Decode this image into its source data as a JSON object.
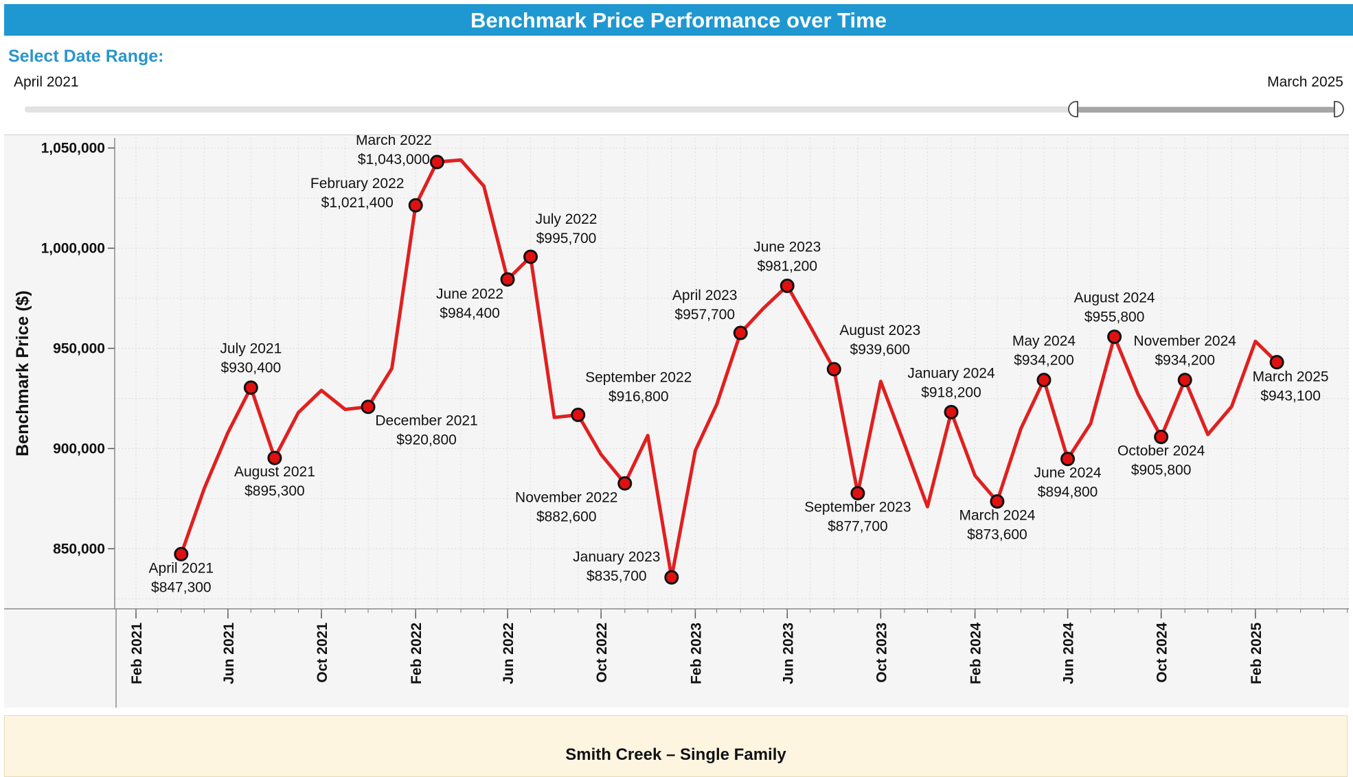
{
  "header": {
    "title": "Benchmark Price Performance over Time"
  },
  "range": {
    "label": "Select Date Range:",
    "start_label": "April 2021",
    "end_label": "March 2025"
  },
  "footer": {
    "title": "Smith Creek – Single Family"
  },
  "colors": {
    "title_bar": "#1f98d1",
    "label": "#2a95c9",
    "line": "#e02020",
    "marker": "#e01010"
  },
  "chart_data": {
    "type": "line",
    "ylabel": "Benchmark Price ($)",
    "xlabel": "",
    "ylim": [
      820000,
      1055000
    ],
    "xlim": [
      "2021-01-06",
      "2025-06-03"
    ],
    "yticks": [
      850000,
      900000,
      950000,
      1000000,
      1050000
    ],
    "ytick_labels": [
      "850,000",
      "900,000",
      "950,000",
      "1,000,000",
      "1,050,000"
    ],
    "xticks": [
      "2021-02-01",
      "2021-06-01",
      "2021-10-01",
      "2022-02-01",
      "2022-06-01",
      "2022-10-01",
      "2023-02-01",
      "2023-06-01",
      "2023-10-01",
      "2024-02-01",
      "2024-06-01",
      "2024-10-01",
      "2025-02-01"
    ],
    "xtick_labels": [
      "Feb 2021",
      "Jun 2021",
      "Oct 2021",
      "Feb 2022",
      "Jun 2022",
      "Oct 2022",
      "Feb 2023",
      "Jun 2023",
      "Oct 2023",
      "Feb 2024",
      "Jun 2024",
      "Oct 2024",
      "Feb 2025"
    ],
    "grid": true,
    "series": [
      {
        "x": [
          "2021-04-01",
          "2021-05-01",
          "2021-06-01",
          "2021-07-01",
          "2021-08-01",
          "2021-09-01",
          "2021-10-01",
          "2021-11-01",
          "2021-12-01",
          "2022-01-01",
          "2022-02-01",
          "2022-03-01",
          "2022-04-01",
          "2022-05-01",
          "2022-06-01",
          "2022-07-01",
          "2022-08-01",
          "2022-09-01",
          "2022-10-01",
          "2022-11-01",
          "2022-12-01",
          "2023-01-01",
          "2023-02-01",
          "2023-03-01",
          "2023-04-01",
          "2023-05-01",
          "2023-06-01",
          "2023-07-01",
          "2023-08-01",
          "2023-09-01",
          "2023-10-01",
          "2023-11-01",
          "2023-12-01",
          "2024-01-01",
          "2024-02-01",
          "2024-03-01",
          "2024-04-01",
          "2024-05-01",
          "2024-06-01",
          "2024-07-01",
          "2024-08-01",
          "2024-09-01",
          "2024-10-01",
          "2024-11-01",
          "2024-12-01",
          "2025-01-01",
          "2025-02-01",
          "2025-03-01"
        ],
        "values": [
          847300,
          880000,
          908000,
          930400,
          895300,
          918000,
          929000,
          919500,
          920800,
          940000,
          1021400,
          1043000,
          1044000,
          1031000,
          984400,
          995700,
          915500,
          916800,
          897000,
          882600,
          906500,
          835700,
          899000,
          922000,
          957700,
          970000,
          981200,
          961000,
          939600,
          877700,
          933500,
          902000,
          871000,
          918200,
          886500,
          873600,
          910000,
          934200,
          894800,
          912500,
          955800,
          927000,
          905800,
          934200,
          907000,
          921000,
          953500,
          943100
        ]
      }
    ],
    "point_labels": [
      {
        "x": "2021-04-01",
        "month": "April 2021",
        "value": "$847,300"
      },
      {
        "x": "2021-07-01",
        "month": "July 2021",
        "value": "$930,400"
      },
      {
        "x": "2021-08-01",
        "month": "August 2021",
        "value": "$895,300"
      },
      {
        "x": "2021-12-01",
        "month": "December 2021",
        "value": "$920,800"
      },
      {
        "x": "2022-02-01",
        "month": "February 2022",
        "value": "$1,021,400"
      },
      {
        "x": "2022-03-01",
        "month": "March 2022",
        "value": "$1,043,000"
      },
      {
        "x": "2022-06-01",
        "month": "June 2022",
        "value": "$984,400"
      },
      {
        "x": "2022-07-01",
        "month": "July 2022",
        "value": "$995,700"
      },
      {
        "x": "2022-09-01",
        "month": "September 2022",
        "value": "$916,800"
      },
      {
        "x": "2022-11-01",
        "month": "November 2022",
        "value": "$882,600"
      },
      {
        "x": "2023-01-01",
        "month": "January 2023",
        "value": "$835,700"
      },
      {
        "x": "2023-04-01",
        "month": "April 2023",
        "value": "$957,700"
      },
      {
        "x": "2023-06-01",
        "month": "June 2023",
        "value": "$981,200"
      },
      {
        "x": "2023-08-01",
        "month": "August 2023",
        "value": "$939,600"
      },
      {
        "x": "2023-09-01",
        "month": "September 2023",
        "value": "$877,700"
      },
      {
        "x": "2024-01-01",
        "month": "January 2024",
        "value": "$918,200"
      },
      {
        "x": "2024-03-01",
        "month": "March 2024",
        "value": "$873,600"
      },
      {
        "x": "2024-05-01",
        "month": "May 2024",
        "value": "$934,200"
      },
      {
        "x": "2024-06-01",
        "month": "June 2024",
        "value": "$894,800"
      },
      {
        "x": "2024-08-01",
        "month": "August 2024",
        "value": "$955,800"
      },
      {
        "x": "2024-10-01",
        "month": "October 2024",
        "value": "$905,800"
      },
      {
        "x": "2024-11-01",
        "month": "November 2024",
        "value": "$934,200"
      },
      {
        "x": "2025-03-01",
        "month": "March 2025",
        "value": "$943,100"
      }
    ]
  }
}
